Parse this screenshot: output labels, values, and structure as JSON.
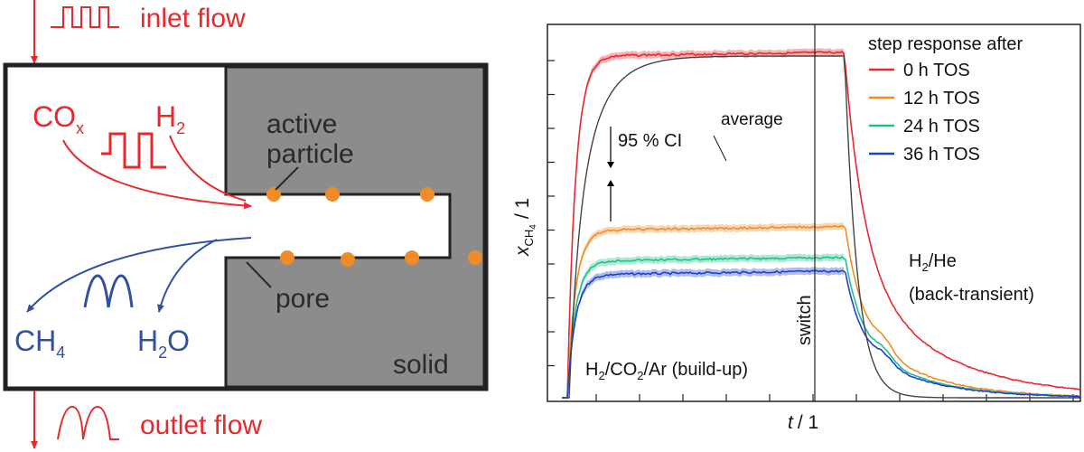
{
  "diagram": {
    "inlet_label": "inlet flow",
    "outlet_label": "outlet flow",
    "cox_main": "CO",
    "cox_sub": "x",
    "h2_main": "H",
    "h2_sub": "2",
    "active_particle_line1": "active",
    "active_particle_line2": "particle",
    "pore_label": "pore",
    "solid_label": "solid",
    "ch4_main": "CH",
    "ch4_sub": "4",
    "h2o_main": "H",
    "h2o_sub": "2",
    "h2o_tail": "O",
    "colors": {
      "inlet": "#e8282d",
      "outlet": "#3050a0",
      "solid": "#8c8c8c",
      "particle": "#f08c28"
    }
  },
  "chart_data": {
    "type": "line",
    "title": "",
    "xlabel_main": "t",
    "xlabel_unit": "/ 1",
    "ylabel_main": "x",
    "ylabel_sub": "CH",
    "ylabel_sub2": "4",
    "ylabel_unit": "/ 1",
    "legend_title": "step response after",
    "legend_placement": "top-right",
    "series": [
      {
        "name": "0 h TOS",
        "color": "#e8282d",
        "plateau": 1.0
      },
      {
        "name": "12 h TOS",
        "color": "#f08c28",
        "plateau": 0.49
      },
      {
        "name": "24 h TOS",
        "color": "#20c08c",
        "plateau": 0.4
      },
      {
        "name": "36 h TOS",
        "color": "#2040d0",
        "plateau": 0.36
      }
    ],
    "annotations": {
      "ci": "95 % CI",
      "average": "average",
      "switch": "switch",
      "buildup_1": "H",
      "buildup_2": "2",
      "buildup_3": "/CO",
      "buildup_4": "2",
      "buildup_5": "/Ar (build-up)",
      "back_1": "H",
      "back_2": "2",
      "back_3": "/He",
      "back_line2": "(back-transient)"
    }
  }
}
